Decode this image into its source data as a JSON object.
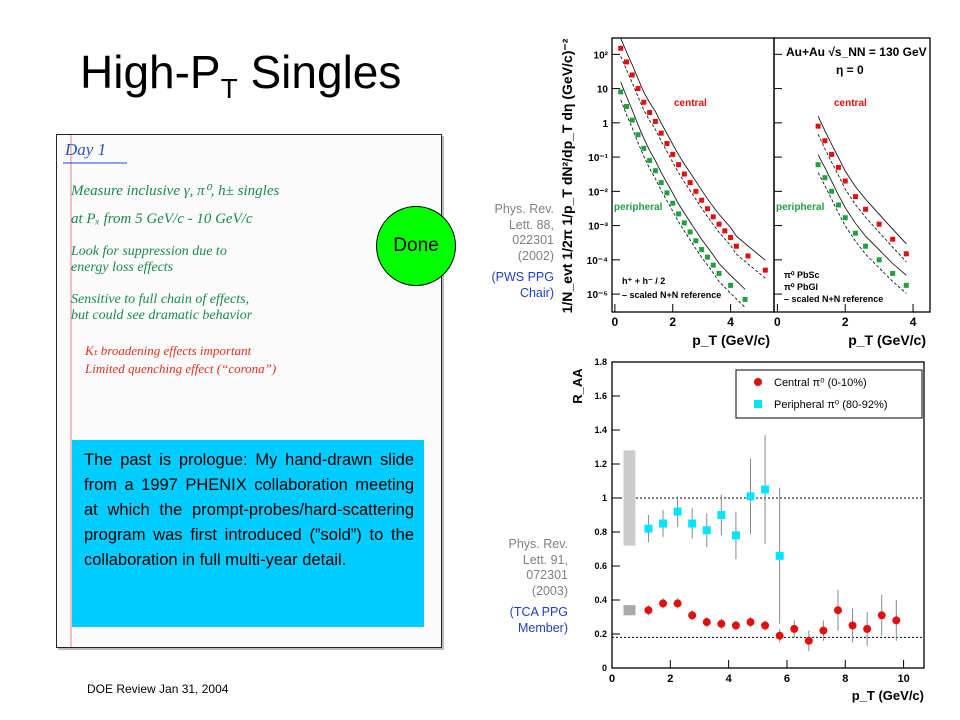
{
  "slide": {
    "title_main": "High-P",
    "title_sub": "T",
    "title_tail": " Singles",
    "done_label": "Done",
    "caption": "The past is prologue: My hand-drawn slide from a 1997 PHENIX collaboration meeting at which the prompt-probes/hard-scattering program was first introduced (”sold”) to the collaboration in full multi-year detail.",
    "footer": "DOE Review  Jan 31, 2004",
    "colors": {
      "done": "#00ff00",
      "caption_bg": "#00ccff",
      "reference_link": "#1f3fbf",
      "central": "#e01010",
      "peripheral": "#20a040"
    }
  },
  "handwritten": {
    "lines": [
      "Day 1",
      "Measure  inclusive  γ, π⁰, h±  singles",
      "at   Pₓ   from   5 GeV/c  -  10 GeV/c",
      "Look  for  suppression  due  to",
      "energy  loss  effects",
      "Sensitive  to  full chain  of  effects,",
      "but  could  see  dramatic  behavior",
      "Kₜ broadening  effects  important",
      "Limited  quenching  effect  (“corona”)"
    ]
  },
  "refs": {
    "top": {
      "lines": [
        "Phys. Rev.",
        "Lett. 88,",
        "022301",
        "(2002)"
      ],
      "note": [
        "(PWS PPG",
        "Chair)"
      ]
    },
    "bottom": {
      "lines": [
        "Phys. Rev.",
        "Lett. 91,",
        "072301",
        "(2003)"
      ],
      "note": [
        "(TCA PPG",
        "Member)"
      ]
    }
  },
  "chart_data": [
    {
      "type": "scatter",
      "title": "",
      "ylabel": "1/N_evt 1/2π 1/p_T dN²/dp_T dη (GeV/c)⁻²",
      "ylog": true,
      "ylim": [
        3e-06,
        300
      ],
      "yticks": [
        "10²",
        "10",
        "1",
        "10⁻¹",
        "10⁻²",
        "10⁻³",
        "10⁻⁴",
        "10⁻⁵"
      ],
      "ytick_values": [
        100,
        10,
        1,
        0.1,
        0.01,
        0.001,
        0.0001,
        1e-05
      ],
      "panels": [
        {
          "xlabel": "p_T (GeV/c)",
          "xlim": [
            -0.1,
            5.5
          ],
          "xticks": [
            "0",
            "2",
            "4"
          ],
          "xtick_values": [
            0,
            2,
            4
          ],
          "legend": [
            "h⁺ + h⁻ / 2",
            "– scaled N+N reference"
          ],
          "series": [
            {
              "name": "central",
              "color": "#e01010",
              "x": [
                0.2,
                0.4,
                0.6,
                0.8,
                1.0,
                1.2,
                1.4,
                1.6,
                1.8,
                2.0,
                2.2,
                2.4,
                2.6,
                2.8,
                3.0,
                3.2,
                3.4,
                3.6,
                3.8,
                4.0,
                4.2,
                4.6,
                5.2
              ],
              "y": [
                150,
                60,
                25,
                10,
                4,
                2,
                1.1,
                0.5,
                0.25,
                0.12,
                0.06,
                0.032,
                0.018,
                0.01,
                0.0055,
                0.0031,
                0.0018,
                0.0011,
                0.0007,
                0.00045,
                0.00025,
                0.00013,
                5e-05
              ]
            },
            {
              "name": "peripheral",
              "color": "#20a040",
              "x": [
                0.2,
                0.4,
                0.6,
                0.8,
                1.0,
                1.2,
                1.4,
                1.6,
                1.8,
                2.0,
                2.2,
                2.4,
                2.6,
                2.8,
                3.0,
                3.2,
                3.4,
                3.6,
                4.0,
                4.5
              ],
              "y": [
                8,
                3,
                1.2,
                0.45,
                0.18,
                0.08,
                0.04,
                0.018,
                0.009,
                0.0045,
                0.0022,
                0.0012,
                0.00065,
                0.00036,
                0.0002,
                0.00012,
                7e-05,
                4e-05,
                1.8e-05,
                7e-06
              ]
            }
          ]
        },
        {
          "xlabel": "p_T (GeV/c)",
          "xlim": [
            -0.1,
            4.5
          ],
          "xticks": [
            "0",
            "2",
            "4"
          ],
          "xtick_values": [
            0,
            2,
            4
          ],
          "annotation": [
            "Au+Au √s_NN = 130 GeV",
            "η = 0"
          ],
          "legend": [
            "π⁰ PbSc",
            "π⁰ PbGl",
            "– scaled N+N reference"
          ],
          "series": [
            {
              "name": "central",
              "color": "#e01010",
              "x": [
                1.2,
                1.4,
                1.6,
                1.8,
                2.0,
                2.3,
                2.6,
                3.0,
                3.4,
                3.8
              ],
              "y": [
                0.8,
                0.3,
                0.12,
                0.05,
                0.02,
                0.007,
                0.003,
                0.0011,
                0.0004,
                0.00015
              ]
            },
            {
              "name": "peripheral",
              "color": "#20a040",
              "x": [
                1.2,
                1.4,
                1.6,
                1.8,
                2.0,
                2.3,
                2.6,
                3.0,
                3.4,
                3.8
              ],
              "y": [
                0.06,
                0.025,
                0.01,
                0.004,
                0.0017,
                0.0006,
                0.00025,
                0.0001,
                4e-05,
                1.8e-05
              ]
            }
          ]
        }
      ]
    },
    {
      "type": "scatter",
      "title": "",
      "xlabel": "p_T (GeV/c)",
      "ylabel": "R_AA",
      "xlim": [
        0,
        10.7
      ],
      "ylim": [
        0,
        1.8
      ],
      "xticks": [
        "0",
        "2",
        "4",
        "6",
        "8",
        "10"
      ],
      "xtick_values": [
        0,
        2,
        4,
        6,
        8,
        10
      ],
      "yticks": [
        "0",
        "0.2",
        "0.4",
        "0.6",
        "0.8",
        "1",
        "1.2",
        "1.4",
        "1.6",
        "1.8"
      ],
      "ytick_values": [
        0,
        0.2,
        0.4,
        0.6,
        0.8,
        1,
        1.2,
        1.4,
        1.6,
        1.8
      ],
      "reference_lines": [
        1.0,
        0.18
      ],
      "legend": [
        "Central π⁰ (0-10%)",
        "Peripheral π⁰ (80-92%)"
      ],
      "series": [
        {
          "name": "Central π⁰ (0-10%)",
          "color": "#e01010",
          "x": [
            1.25,
            1.75,
            2.25,
            2.75,
            3.25,
            3.75,
            4.25,
            4.75,
            5.25,
            5.75,
            6.25,
            6.75,
            7.25,
            7.75,
            8.25,
            8.75,
            9.25,
            9.75
          ],
          "y": [
            0.34,
            0.38,
            0.38,
            0.31,
            0.27,
            0.26,
            0.25,
            0.27,
            0.25,
            0.19,
            0.23,
            0.16,
            0.22,
            0.34,
            0.25,
            0.23,
            0.31,
            0.28
          ],
          "err": [
            0.03,
            0.03,
            0.03,
            0.03,
            0.03,
            0.03,
            0.03,
            0.03,
            0.03,
            0.04,
            0.05,
            0.06,
            0.06,
            0.12,
            0.1,
            0.1,
            0.12,
            0.12
          ]
        },
        {
          "name": "Peripheral π⁰ (80-92%)",
          "color": "#00e5ff",
          "x": [
            1.25,
            1.75,
            2.25,
            2.75,
            3.25,
            3.75,
            4.25,
            4.75,
            5.25,
            5.75
          ],
          "y": [
            0.82,
            0.85,
            0.92,
            0.85,
            0.81,
            0.9,
            0.78,
            1.01,
            1.05,
            0.66
          ],
          "err": [
            0.08,
            0.08,
            0.09,
            0.09,
            0.1,
            0.12,
            0.14,
            0.22,
            0.32,
            0.4
          ]
        }
      ]
    }
  ]
}
